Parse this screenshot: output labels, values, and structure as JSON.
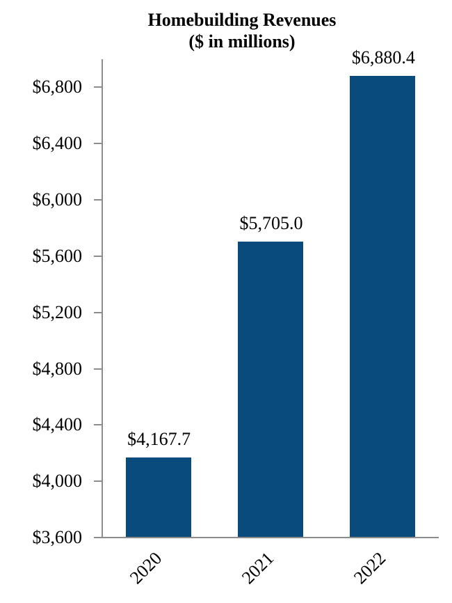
{
  "title": {
    "line1": "Homebuilding Revenues",
    "line2": "($ in millions)"
  },
  "chart_data": {
    "type": "bar",
    "title": "Homebuilding Revenues",
    "subtitle": "($ in millions)",
    "categories": [
      "2020",
      "2021",
      "2022"
    ],
    "values": [
      4167.7,
      5705.0,
      6880.4
    ],
    "value_labels": [
      "$4,167.7",
      "$5,705.0",
      "$6,880.4"
    ],
    "xlabel": "",
    "ylabel": "",
    "ylim": [
      3600,
      7000
    ],
    "ytick_values": [
      3600,
      4000,
      4400,
      4800,
      5200,
      5600,
      6000,
      6400,
      6800
    ],
    "ytick_labels": [
      "$3,600",
      "$4,000",
      "$4,400",
      "$4,800",
      "$5,200",
      "$5,600",
      "$6,000",
      "$6,400",
      "$6,800"
    ],
    "grid": false,
    "legend": false,
    "bar_color": "#0A4B7D",
    "axis_color": "#8C8C8C",
    "text_color": "#000000"
  }
}
